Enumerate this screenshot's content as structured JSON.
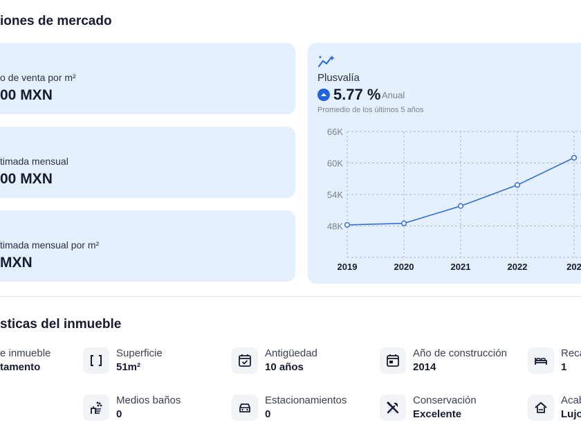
{
  "market": {
    "title": "iones de mercado",
    "cards": [
      {
        "label": "o de venta por m²",
        "value": "00 MXN"
      },
      {
        "label": "timada mensual",
        "value": "00 MXN"
      },
      {
        "label": "timada mensual por m²",
        "value": "MXN"
      }
    ]
  },
  "plusvalia": {
    "icon": "sparkle-trend-icon",
    "title": "Plusvalía",
    "percent": "5.77 %",
    "period": "Anual",
    "note": "Promedio de los últimos 5 años"
  },
  "chart_data": {
    "type": "line",
    "x": [
      "2019",
      "2020",
      "2021",
      "2022",
      "202"
    ],
    "y": [
      48200,
      48500,
      51800,
      55800,
      61000
    ],
    "yticks": [
      "66K",
      "60K",
      "54K",
      "48K"
    ],
    "ylim": [
      48000,
      66000
    ],
    "grid": true,
    "line_color": "#2f6fdd"
  },
  "features": {
    "title": "sticas del inmueble",
    "items": [
      {
        "icon": "home-type-icon",
        "title": "e inmueble",
        "value": "tamento"
      },
      {
        "icon": "area-brackets-icon",
        "title": "Superficie",
        "value": "51m²"
      },
      {
        "icon": "calendar-check-icon",
        "title": "Antigüedad",
        "value": "10 años"
      },
      {
        "icon": "calendar-icon",
        "title": "Año de construcción",
        "value": "2014"
      },
      {
        "icon": "bed-icon",
        "title": "Reca",
        "value": "1"
      },
      {
        "icon": "shower-icon",
        "title": "Medios baños",
        "value": "0"
      },
      {
        "icon": "car-icon",
        "title": "Estacionamientos",
        "value": "0"
      },
      {
        "icon": "tools-icon",
        "title": "Conservación",
        "value": "Excelente"
      },
      {
        "icon": "house-icon",
        "title": "Acab",
        "value": "Lujo"
      }
    ]
  }
}
